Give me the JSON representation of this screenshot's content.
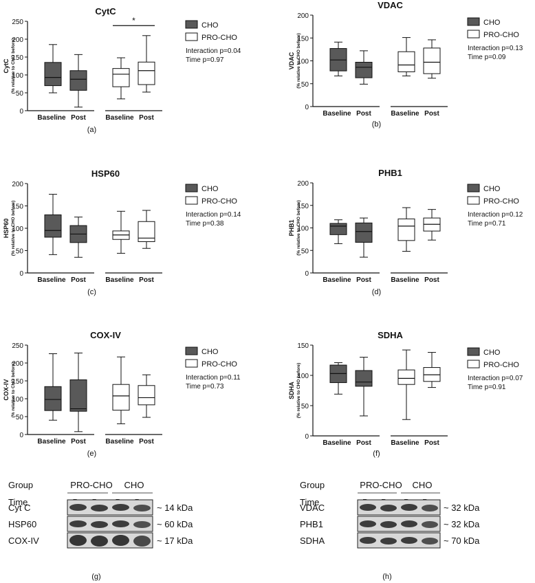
{
  "colors": {
    "cho_fill": "#595959",
    "pro_fill": "#ffffff",
    "stroke": "#111111"
  },
  "chart_data": [
    {
      "type": "boxplot",
      "panel": "(a)",
      "title": "CytC",
      "ylabel": "CytC",
      "ylabel_sub": "(% relative to CHO before)",
      "ylim": [
        0,
        250
      ],
      "yticks": [
        0,
        50,
        100,
        150,
        200,
        250
      ],
      "categories": [
        "Baseline",
        "Post",
        "Baseline",
        "Post"
      ],
      "legend": [
        "CHO",
        "PRO-CHO"
      ],
      "stats": [
        "Interaction p=0.04",
        "Time p=0.97"
      ],
      "significance": "*",
      "series": [
        {
          "name": "CHO",
          "boxes": [
            [
              50,
              70,
              93,
              135,
              185
            ],
            [
              10,
              57,
              88,
              112,
              157
            ]
          ]
        },
        {
          "name": "PRO-CHO",
          "boxes": [
            [
              33,
              67,
              102,
              118,
              148
            ],
            [
              52,
              73,
              112,
              136,
              210
            ]
          ]
        }
      ]
    },
    {
      "type": "boxplot",
      "panel": "(b)",
      "title": "VDAC",
      "ylabel": "VDAC",
      "ylabel_sub": "(% relative to CHO before)",
      "ylim": [
        0,
        200
      ],
      "yticks": [
        0,
        50,
        100,
        150,
        200
      ],
      "categories": [
        "Baseline",
        "Post",
        "Baseline",
        "Post"
      ],
      "legend": [
        "CHO",
        "PRO-CHO"
      ],
      "stats": [
        "Interaction p=0.13",
        "Time p=0.09"
      ],
      "series": [
        {
          "name": "CHO",
          "boxes": [
            [
              67,
              78,
              102,
              127,
              141
            ],
            [
              49,
              63,
              86,
              97,
              122
            ]
          ]
        },
        {
          "name": "PRO-CHO",
          "boxes": [
            [
              67,
              76,
              91,
              120,
              151
            ],
            [
              62,
              72,
              97,
              128,
              146
            ]
          ]
        }
      ]
    },
    {
      "type": "boxplot",
      "panel": "(c)",
      "title": "HSP60",
      "ylabel": "HSP60",
      "ylabel_sub": "(% relative to CHO before)",
      "ylim": [
        0,
        200
      ],
      "yticks": [
        0,
        50,
        100,
        150,
        200
      ],
      "categories": [
        "Baseline",
        "Post",
        "Baseline",
        "Post"
      ],
      "legend": [
        "CHO",
        "PRO-CHO"
      ],
      "stats": [
        "Interaction p=0.14",
        "Time p=0.38"
      ],
      "series": [
        {
          "name": "CHO",
          "boxes": [
            [
              41,
              80,
              95,
              130,
              176
            ],
            [
              35,
              68,
              87,
              106,
              125
            ]
          ]
        },
        {
          "name": "PRO-CHO",
          "boxes": [
            [
              44,
              75,
              85,
              94,
              138
            ],
            [
              55,
              70,
              78,
              115,
              140
            ]
          ]
        }
      ]
    },
    {
      "type": "boxplot",
      "panel": "(d)",
      "title": "PHB1",
      "ylabel": "PHB1",
      "ylabel_sub": "(% relative to CHO before)",
      "ylim": [
        0,
        200
      ],
      "yticks": [
        0,
        50,
        100,
        150,
        200
      ],
      "categories": [
        "Baseline",
        "Post",
        "Baseline",
        "Post"
      ],
      "legend": [
        "CHO",
        "PRO-CHO"
      ],
      "stats": [
        "Interaction p=0.12",
        "Time p=0.71"
      ],
      "series": [
        {
          "name": "CHO",
          "boxes": [
            [
              65,
              85,
              104,
              110,
              118
            ],
            [
              35,
              68,
              92,
              111,
              122
            ]
          ]
        },
        {
          "name": "PRO-CHO",
          "boxes": [
            [
              48,
              72,
              104,
              120,
              145
            ],
            [
              73,
              93,
              108,
              122,
              141
            ]
          ]
        }
      ]
    },
    {
      "type": "boxplot",
      "panel": "(e)",
      "title": "COX-IV",
      "ylabel": "COX-IV",
      "ylabel_sub": "(% relative to CHO before)",
      "ylim": [
        0,
        250
      ],
      "yticks": [
        0,
        50,
        100,
        150,
        200,
        250
      ],
      "categories": [
        "Baseline",
        "Post",
        "Baseline",
        "Post"
      ],
      "legend": [
        "CHO",
        "PRO-CHO"
      ],
      "stats": [
        "Interaction p=0.11",
        "Time p=0.73"
      ],
      "series": [
        {
          "name": "CHO",
          "boxes": [
            [
              40,
              67,
              98,
              134,
              226
            ],
            [
              8,
              65,
              72,
              153,
              228
            ]
          ]
        },
        {
          "name": "PRO-CHO",
          "boxes": [
            [
              30,
              68,
              108,
              140,
              217
            ],
            [
              48,
              83,
              103,
              137,
              167
            ]
          ]
        }
      ]
    },
    {
      "type": "boxplot",
      "panel": "(f)",
      "title": "SDHA",
      "ylabel": "SDHA",
      "ylabel_sub": "(% relative to CHO before)",
      "ylim": [
        0,
        150
      ],
      "yticks": [
        0,
        50,
        100,
        150
      ],
      "categories": [
        "Baseline",
        "Post",
        "Baseline",
        "Post"
      ],
      "legend": [
        "CHO",
        "PRO-CHO"
      ],
      "stats": [
        "Interaction p=0.07",
        "Time p=0.91"
      ],
      "series": [
        {
          "name": "CHO",
          "boxes": [
            [
              69,
              88,
              103,
              117,
              121
            ],
            [
              33,
              82,
              89,
              108,
              130
            ]
          ]
        },
        {
          "name": "PRO-CHO",
          "boxes": [
            [
              27,
              85,
              95,
              109,
              142
            ],
            [
              80,
              90,
              101,
              113,
              138
            ]
          ]
        }
      ]
    }
  ],
  "blots": [
    {
      "panel": "(g)",
      "group_label": "Group",
      "time_label": "Time",
      "groups": [
        "PRO-CHO",
        "CHO"
      ],
      "times": [
        "Pre",
        "Post",
        "Pre",
        "Post"
      ],
      "bands": [
        {
          "name": "Cyt C",
          "kda": "~ 14 kDa"
        },
        {
          "name": "HSP60",
          "kda": "~ 60 kDa"
        },
        {
          "name": "COX-IV",
          "kda": "~ 17 kDa"
        }
      ]
    },
    {
      "panel": "(h)",
      "group_label": "Group",
      "time_label": "Time",
      "groups": [
        "PRO-CHO",
        "CHO"
      ],
      "times": [
        "Pre",
        "Post",
        "Pre",
        "Post"
      ],
      "bands": [
        {
          "name": "VDAC",
          "kda": "~ 32 kDa"
        },
        {
          "name": "PHB1",
          "kda": "~ 32 kDa"
        },
        {
          "name": "SDHA",
          "kda": "~ 70 kDa"
        }
      ]
    }
  ]
}
